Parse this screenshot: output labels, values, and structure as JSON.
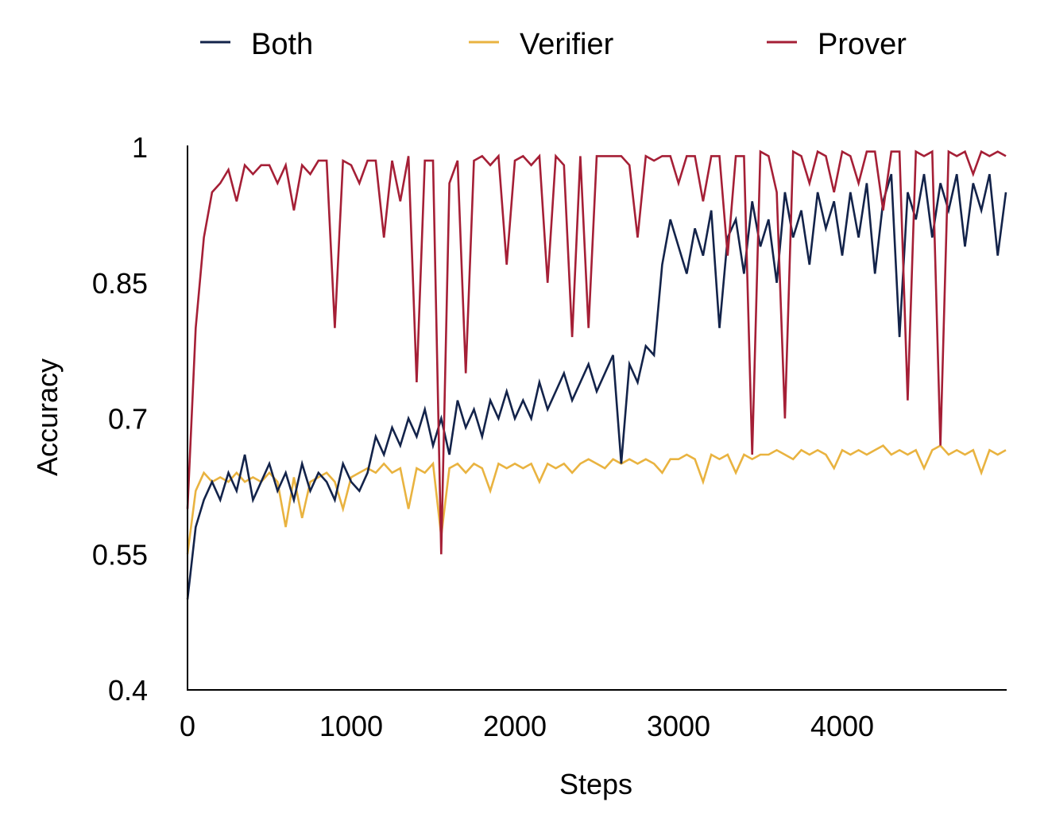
{
  "chart_data": {
    "type": "line",
    "title": "",
    "xlabel": "Steps",
    "ylabel": "Accuracy",
    "xlim": [
      0,
      5000
    ],
    "ylim": [
      0.4,
      1.0
    ],
    "grid": false,
    "legend_position": "top",
    "x_ticks": [
      0,
      1000,
      2000,
      3000,
      4000
    ],
    "x_tick_labels": [
      "0",
      "1000",
      "2000",
      "3000",
      "4000"
    ],
    "y_ticks": [
      0.4,
      0.55,
      0.7,
      0.85,
      1.0
    ],
    "y_tick_labels": [
      "0.4",
      "0.55",
      "0.7",
      "0.85",
      "1"
    ],
    "x_step": 50,
    "series": [
      {
        "name": "Verifier",
        "color": "#E9B340",
        "values": [
          0.55,
          0.62,
          0.64,
          0.63,
          0.635,
          0.63,
          0.64,
          0.63,
          0.635,
          0.63,
          0.64,
          0.63,
          0.58,
          0.635,
          0.59,
          0.63,
          0.635,
          0.64,
          0.63,
          0.6,
          0.635,
          0.64,
          0.645,
          0.64,
          0.65,
          0.64,
          0.645,
          0.6,
          0.645,
          0.64,
          0.65,
          0.57,
          0.645,
          0.65,
          0.64,
          0.65,
          0.645,
          0.62,
          0.65,
          0.645,
          0.65,
          0.645,
          0.65,
          0.63,
          0.65,
          0.645,
          0.65,
          0.64,
          0.65,
          0.655,
          0.65,
          0.645,
          0.655,
          0.65,
          0.655,
          0.65,
          0.655,
          0.65,
          0.64,
          0.655,
          0.655,
          0.66,
          0.655,
          0.63,
          0.66,
          0.655,
          0.66,
          0.64,
          0.66,
          0.655,
          0.66,
          0.66,
          0.665,
          0.66,
          0.655,
          0.665,
          0.66,
          0.665,
          0.66,
          0.645,
          0.665,
          0.66,
          0.665,
          0.66,
          0.665,
          0.67,
          0.66,
          0.665,
          0.66,
          0.665,
          0.645,
          0.665,
          0.67,
          0.66,
          0.665,
          0.66,
          0.665,
          0.64,
          0.665,
          0.66,
          0.665
        ]
      },
      {
        "name": "Both",
        "color": "#13234A",
        "values": [
          0.5,
          0.58,
          0.61,
          0.63,
          0.61,
          0.64,
          0.62,
          0.66,
          0.61,
          0.63,
          0.65,
          0.62,
          0.64,
          0.61,
          0.65,
          0.62,
          0.64,
          0.63,
          0.61,
          0.65,
          0.63,
          0.62,
          0.64,
          0.68,
          0.66,
          0.69,
          0.67,
          0.7,
          0.68,
          0.71,
          0.67,
          0.7,
          0.66,
          0.72,
          0.69,
          0.71,
          0.68,
          0.72,
          0.7,
          0.73,
          0.7,
          0.72,
          0.7,
          0.74,
          0.71,
          0.73,
          0.75,
          0.72,
          0.74,
          0.76,
          0.73,
          0.75,
          0.77,
          0.65,
          0.76,
          0.74,
          0.78,
          0.77,
          0.87,
          0.92,
          0.89,
          0.86,
          0.91,
          0.88,
          0.93,
          0.8,
          0.9,
          0.92,
          0.86,
          0.94,
          0.89,
          0.92,
          0.85,
          0.95,
          0.9,
          0.93,
          0.87,
          0.95,
          0.91,
          0.94,
          0.88,
          0.95,
          0.9,
          0.96,
          0.86,
          0.94,
          0.97,
          0.79,
          0.95,
          0.92,
          0.97,
          0.9,
          0.96,
          0.93,
          0.97,
          0.89,
          0.96,
          0.93,
          0.97,
          0.88,
          0.95
        ]
      },
      {
        "name": "Prover",
        "color": "#A51F36",
        "values": [
          0.6,
          0.8,
          0.9,
          0.95,
          0.96,
          0.975,
          0.94,
          0.98,
          0.97,
          0.98,
          0.98,
          0.96,
          0.98,
          0.93,
          0.98,
          0.97,
          0.985,
          0.985,
          0.8,
          0.985,
          0.98,
          0.96,
          0.985,
          0.985,
          0.9,
          0.985,
          0.94,
          0.99,
          0.74,
          0.985,
          0.985,
          0.55,
          0.96,
          0.985,
          0.75,
          0.985,
          0.99,
          0.98,
          0.99,
          0.87,
          0.985,
          0.99,
          0.98,
          0.99,
          0.85,
          0.99,
          0.98,
          0.79,
          0.99,
          0.8,
          0.99,
          0.99,
          0.99,
          0.99,
          0.98,
          0.9,
          0.99,
          0.985,
          0.99,
          0.99,
          0.96,
          0.99,
          0.99,
          0.94,
          0.99,
          0.99,
          0.88,
          0.99,
          0.99,
          0.66,
          0.995,
          0.99,
          0.95,
          0.7,
          0.995,
          0.99,
          0.96,
          0.995,
          0.99,
          0.95,
          0.995,
          0.99,
          0.96,
          0.995,
          0.995,
          0.93,
          0.995,
          0.995,
          0.72,
          0.995,
          0.99,
          0.995,
          0.67,
          0.995,
          0.99,
          0.995,
          0.97,
          0.995,
          0.99,
          0.995,
          0.99
        ]
      }
    ],
    "legend": [
      {
        "name": "Both",
        "color": "#13234A"
      },
      {
        "name": "Verifier",
        "color": "#E9B340"
      },
      {
        "name": "Prover",
        "color": "#A51F36"
      }
    ]
  }
}
